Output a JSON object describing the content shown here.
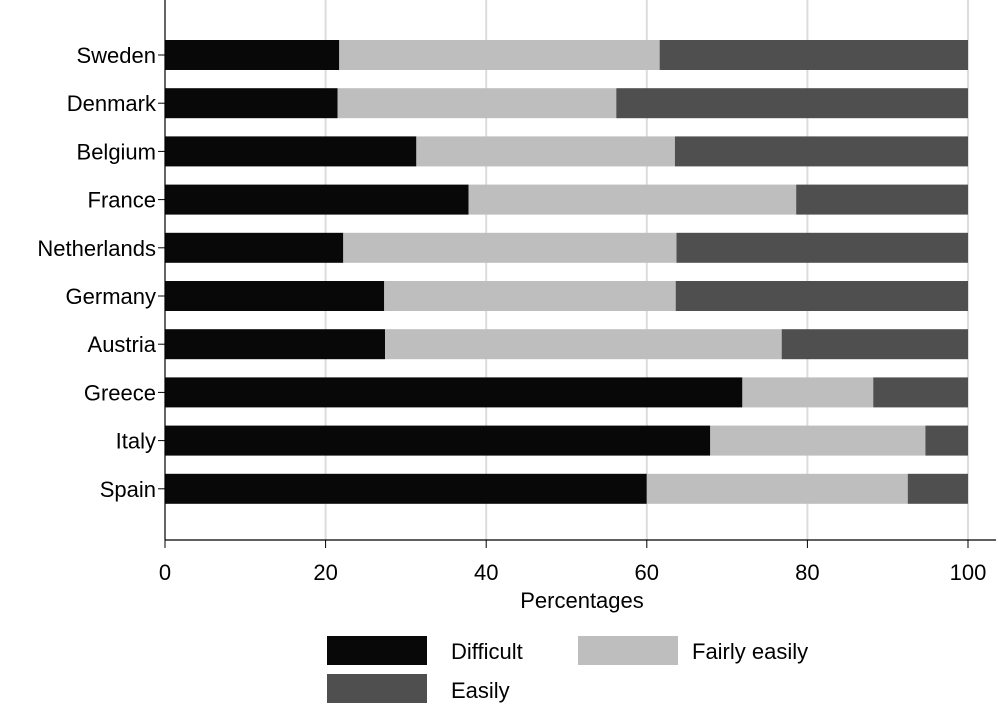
{
  "chart_data": {
    "type": "bar",
    "orientation": "horizontal",
    "stacked": true,
    "categories": [
      "Sweden",
      "Denmark",
      "Belgium",
      "France",
      "Netherlands",
      "Germany",
      "Austria",
      "Greece",
      "Italy",
      "Spain"
    ],
    "series": [
      {
        "name": "Difficult",
        "color": "#080808",
        "values": [
          21.7,
          21.5,
          31.3,
          37.8,
          22.2,
          27.3,
          27.4,
          71.9,
          67.9,
          60.0
        ]
      },
      {
        "name": "Fairly easily",
        "color": "#bebebe",
        "values": [
          39.9,
          34.7,
          32.2,
          40.8,
          41.5,
          36.3,
          49.4,
          16.3,
          26.8,
          32.5
        ]
      },
      {
        "name": "Easily",
        "color": "#4f4f4f",
        "values": [
          38.4,
          43.8,
          36.5,
          21.4,
          36.3,
          36.4,
          23.2,
          11.8,
          5.3,
          7.5
        ]
      }
    ],
    "xlabel": "Percentages",
    "ylabel": "",
    "xlim": [
      0,
      100
    ],
    "xticks": [
      0,
      20,
      40,
      60,
      80,
      100
    ],
    "grid": true,
    "legend_position": "bottom"
  }
}
